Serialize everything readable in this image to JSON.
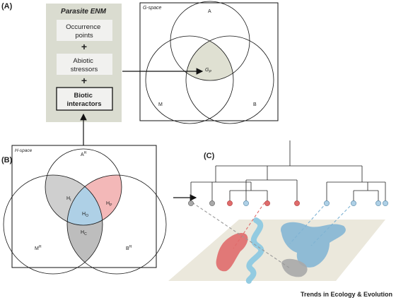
{
  "panels": {
    "a": "(A)",
    "b": "(B)",
    "c": "(C)"
  },
  "enm": {
    "title": "Parasite ENM",
    "box1": [
      "Occurrence",
      "points"
    ],
    "plus1": "+",
    "box2": [
      "Abiotic",
      "stressors"
    ],
    "plus2": "+",
    "box3": [
      "Biotic",
      "interactors"
    ]
  },
  "gspace": {
    "title": "G-space",
    "label_a": "A",
    "label_m": "M",
    "label_b": "B",
    "label_g": "G",
    "label_g_sub": "P"
  },
  "hspace": {
    "title": "H-space",
    "label_a": "A",
    "label_a_sup": "H",
    "label_m": "M",
    "label_m_sup": "H",
    "label_b": "B",
    "label_b_sup": "H",
    "label_hp": "H",
    "label_hp_sub": "P",
    "label_ho": "H",
    "label_ho_sub": "O",
    "label_hi": "H",
    "label_hi_sub": "I",
    "label_hc": "H",
    "label_hc_sub": "C"
  },
  "colors": {
    "enm_bg": "#dadcd0",
    "enm_box": "#f1f1ef",
    "red": "#e06b6b",
    "blue": "#7fb3d3",
    "grey": "#a9a9a9",
    "map_bg": "#ebe8dc",
    "river": "#8ec9e0"
  },
  "footer": "Trends in Ecology & Evolution"
}
